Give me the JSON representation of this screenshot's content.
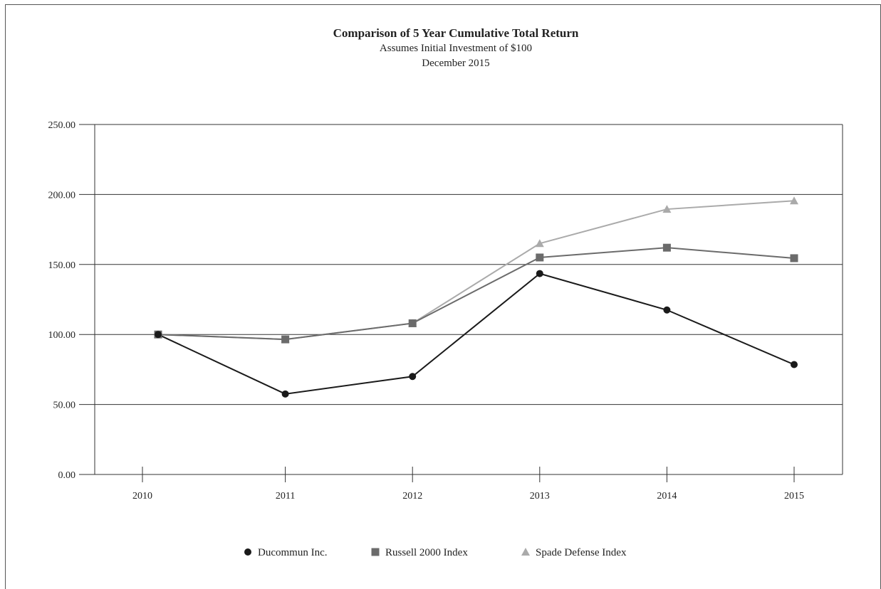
{
  "chart_data": {
    "type": "line",
    "title": "Comparison of 5 Year Cumulative Total Return",
    "subtitle": "Assumes Initial Investment of $100",
    "subtitle2": "December 2015",
    "xlabel": "",
    "ylabel": "",
    "categories": [
      "2010",
      "2011",
      "2012",
      "2013",
      "2014",
      "2015"
    ],
    "ylim": [
      0,
      250
    ],
    "yticks": [
      "0.00",
      "50.00",
      "100.00",
      "150.00",
      "200.00",
      "250.00"
    ],
    "grid": "horizontal",
    "legend": "bottom-center",
    "series": [
      {
        "name": "Ducommun Inc.",
        "marker": "circle",
        "color": "#1a1a1a",
        "values": [
          100.0,
          57.5,
          70.0,
          143.5,
          117.5,
          78.5
        ]
      },
      {
        "name": "Russell 2000 Index",
        "marker": "square",
        "color": "#6b6b6b",
        "values": [
          100.0,
          96.5,
          108.0,
          155.0,
          162.0,
          154.5
        ]
      },
      {
        "name": "Spade Defense Index",
        "marker": "triangle",
        "color": "#aaaaaa",
        "values": [
          100.0,
          96.5,
          108.0,
          165.0,
          189.5,
          195.5
        ]
      }
    ]
  }
}
